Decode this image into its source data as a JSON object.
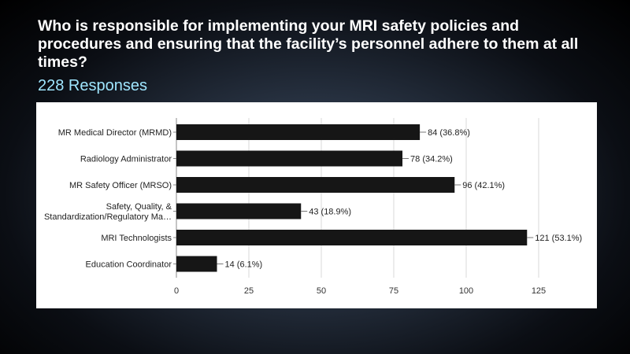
{
  "slide": {
    "question": "Who is responsible for implementing your MRI safety policies and procedures and ensuring that the facility’s personnel adhere to them at all times?",
    "responses": "228 Responses"
  },
  "chart_data": {
    "type": "bar",
    "orientation": "horizontal",
    "categories": [
      "MR Medical Director (MRMD)",
      "Radiology Administrator",
      "MR Safety Officer (MRSO)",
      "Safety, Quality, & Standardization/Regulatory Ma…",
      "MRI Technologists",
      "Education Coordinator"
    ],
    "category_lines": [
      [
        "MR Medical Director (MRMD)"
      ],
      [
        "Radiology Administrator"
      ],
      [
        "MR Safety Officer (MRSO)"
      ],
      [
        "Safety, Quality, &",
        "Standardization/Regulatory Ma…"
      ],
      [
        "MRI Technologists"
      ],
      [
        "Education Coordinator"
      ]
    ],
    "values": [
      84,
      78,
      96,
      43,
      121,
      14
    ],
    "data_labels": [
      "84 (36.8%)",
      "78 (34.2%)",
      "96 (42.1%)",
      "43 (18.9%)",
      "121 (53.1%)",
      "14 (6.1%)"
    ],
    "xlim": [
      0,
      125
    ],
    "xticks": [
      0,
      25,
      50,
      75,
      100,
      125
    ],
    "xtick_labels": [
      "0",
      "25",
      "50",
      "75",
      "100",
      "125"
    ],
    "grid": true,
    "bar_color": "#161616"
  }
}
